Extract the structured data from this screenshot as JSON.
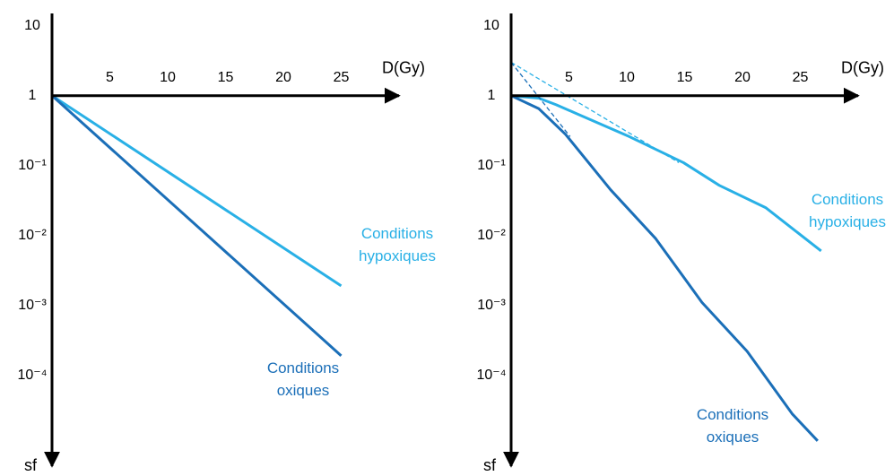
{
  "chart_data": [
    {
      "type": "line",
      "xlabel": "D(Gy)",
      "ylabel": "sf",
      "log_y": true,
      "xlim": [
        0,
        30
      ],
      "ylim": [
        5e-06,
        15
      ],
      "xticks": [
        5,
        10,
        15,
        20,
        25
      ],
      "yticks": [
        10,
        1,
        {
          "value": 0.1,
          "label": "10⁻¹"
        },
        {
          "value": 0.01,
          "label": "10⁻²"
        },
        {
          "value": 0.001,
          "label": "10⁻³"
        },
        {
          "value": 0.0001,
          "label": "10⁻⁴"
        }
      ],
      "series": [
        {
          "name": "Conditions hypoxiques",
          "color": "#29b0e6",
          "x": [
            0,
            25
          ],
          "values": [
            1,
            0.0019
          ]
        },
        {
          "name": "Conditions oxiques",
          "color": "#1b6fb8",
          "x": [
            0,
            25
          ],
          "values": [
            1,
            0.00019
          ]
        }
      ]
    },
    {
      "type": "line",
      "xlabel": "D(Gy)",
      "ylabel": "sf",
      "log_y": true,
      "xlim": [
        0,
        30
      ],
      "ylim": [
        5e-06,
        15
      ],
      "xticks": [
        5,
        10,
        15,
        20,
        25
      ],
      "yticks": [
        10,
        1,
        {
          "value": 0.1,
          "label": "10⁻¹"
        },
        {
          "value": 0.01,
          "label": "10⁻²"
        },
        {
          "value": 0.001,
          "label": "10⁻³"
        },
        {
          "value": 0.0001,
          "label": "10⁻⁴"
        }
      ],
      "series": [
        {
          "name": "Conditions hypoxiques",
          "color": "#29b0e6",
          "x": [
            0,
            2.4,
            3.9,
            10.2,
            14.9,
            18,
            22,
            26.8
          ],
          "values": [
            1,
            0.92,
            0.74,
            0.26,
            0.11,
            0.052,
            0.025,
            0.006
          ]
        },
        {
          "name": "Conditions oxiques",
          "color": "#1b6fb8",
          "x": [
            0,
            2.4,
            4.7,
            8.6,
            12.5,
            16.5,
            20.4,
            24.3,
            26.5
          ],
          "values": [
            1,
            0.65,
            0.28,
            0.045,
            0.009,
            0.0011,
            0.00022,
            2.8e-05,
            1.15e-05
          ]
        },
        {
          "color": "#29b0e6",
          "dashed": true,
          "x": [
            0,
            14.5
          ],
          "values": [
            3,
            0.11
          ]
        },
        {
          "color": "#1b6fb8",
          "dashed": true,
          "x": [
            0,
            5.1
          ],
          "values": [
            3,
            0.26
          ]
        }
      ]
    }
  ]
}
